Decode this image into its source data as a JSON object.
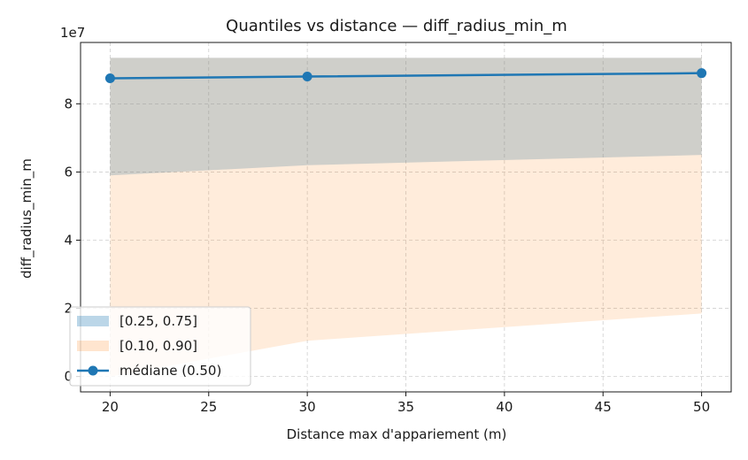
{
  "chart_data": {
    "type": "line",
    "title": "Quantiles vs distance — diff_radius_min_m",
    "xlabel": "Distance max d'appariement (m)",
    "ylabel": "diff_radius_min_m",
    "y_scale_label": "1e7",
    "y_multiplier": 10000000,
    "xlim": [
      18.5,
      51.5
    ],
    "ylim": [
      -0.45,
      9.8
    ],
    "x_ticks": [
      20,
      25,
      30,
      35,
      40,
      45,
      50
    ],
    "x_tick_labels": [
      "20",
      "25",
      "30",
      "35",
      "40",
      "45",
      "50"
    ],
    "y_ticks": [
      0,
      2,
      4,
      6,
      8
    ],
    "y_tick_labels": [
      "0",
      "2",
      "4",
      "6",
      "8"
    ],
    "grid": true,
    "legend_position": "lower-left",
    "x": [
      20,
      30,
      50
    ],
    "series": [
      {
        "name": "[0.25, 0.75]",
        "kind": "band",
        "color": "#1f77b4",
        "alpha": 0.25,
        "lower": [
          5.9,
          6.2,
          6.5
        ],
        "upper": [
          9.35,
          9.35,
          9.35
        ]
      },
      {
        "name": "[0.10, 0.90]",
        "kind": "band",
        "color": "#ff7f0e",
        "alpha": 0.15,
        "lower": [
          0.0,
          1.05,
          1.85
        ],
        "upper": [
          9.35,
          9.35,
          9.35
        ]
      },
      {
        "name": "médiane (0.50)",
        "kind": "line",
        "color": "#1f77b4",
        "values": [
          8.75,
          8.8,
          8.9
        ]
      }
    ]
  }
}
